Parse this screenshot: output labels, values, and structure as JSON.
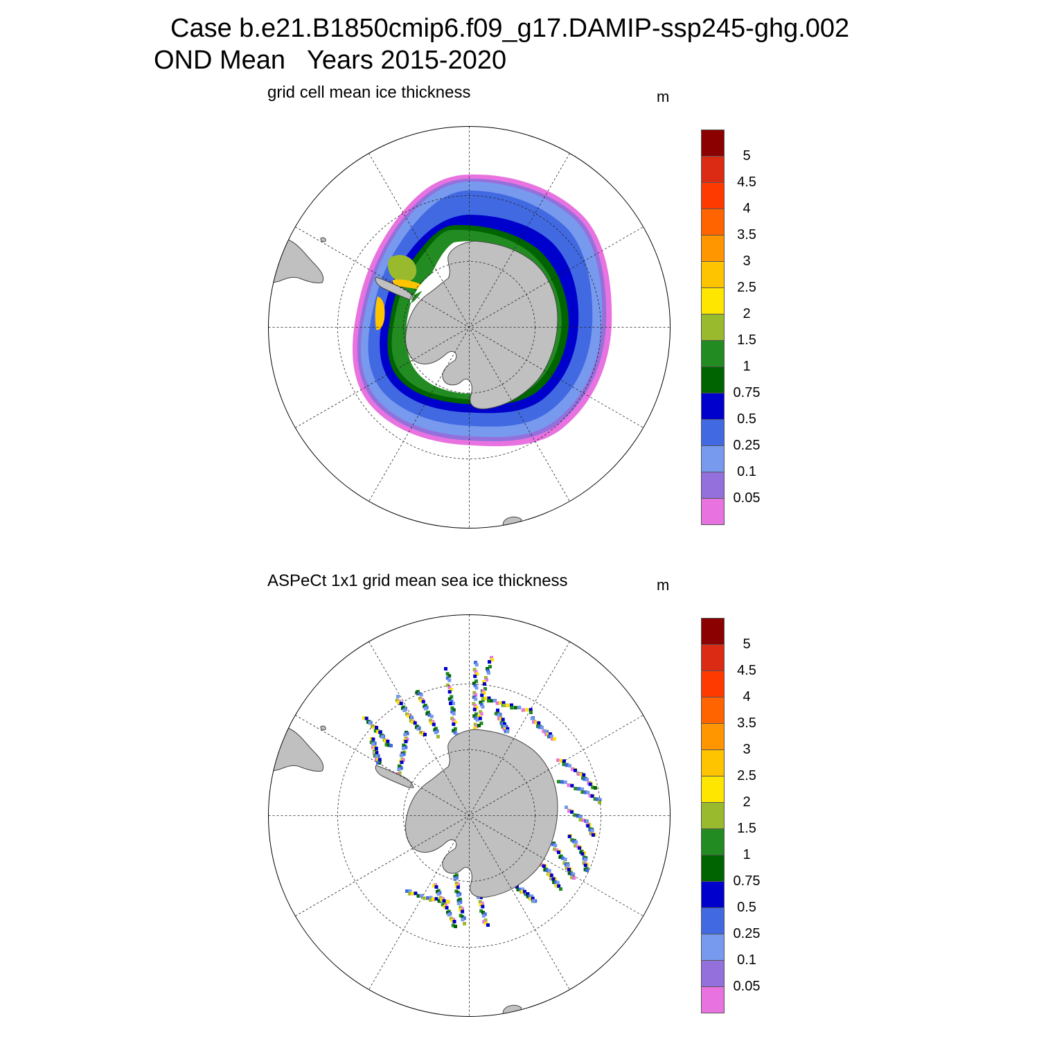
{
  "header": {
    "title_line1": "Case b.e21.B1850cmip6.f09_g17.DAMIP-ssp245-ghg.002",
    "title_line2": "OND Mean   Years 2015-2020"
  },
  "panels": [
    {
      "title": "grid cell mean ice thickness",
      "units": "m"
    },
    {
      "title": "ASPeCt 1x1 grid mean sea ice thickness",
      "units": "m"
    }
  ],
  "colorbar": {
    "labels": [
      "5",
      "4.5",
      "4",
      "3.5",
      "3",
      "2.5",
      "2",
      "1.5",
      "1",
      "0.75",
      "0.5",
      "0.25",
      "0.1",
      "0.05"
    ],
    "colors": [
      "#8b0000",
      "#dc2b14",
      "#ff3a00",
      "#ff6400",
      "#ff9600",
      "#ffc400",
      "#ffe600",
      "#9aba2e",
      "#228b22",
      "#006400",
      "#0000cd",
      "#4169e1",
      "#7799ee",
      "#9370db",
      "#e873e0"
    ]
  },
  "colors": {
    "land": "#c0c0c0",
    "coastline": "#444444",
    "grid": "#222222"
  }
}
